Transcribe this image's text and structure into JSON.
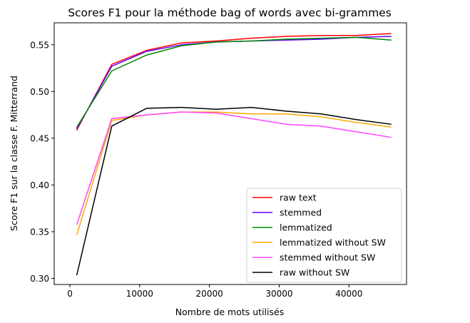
{
  "chart_data": {
    "type": "line",
    "title": "Scores F1 pour la méthode bag of words avec bi-grammes",
    "xlabel": "Nombre de mots utilisés",
    "ylabel": "Score F1 sur la classe F. Mitterrand",
    "xlim": [
      -2250,
      48250
    ],
    "ylim": [
      0.2935,
      0.5735
    ],
    "xticks": [
      0,
      10000,
      20000,
      30000,
      40000
    ],
    "xtick_labels": [
      "0",
      "10000",
      "20000",
      "30000",
      "40000"
    ],
    "yticks": [
      0.3,
      0.35,
      0.4,
      0.45,
      0.5,
      0.55
    ],
    "ytick_labels": [
      "0.30",
      "0.35",
      "0.40",
      "0.45",
      "0.50",
      "0.55"
    ],
    "grid": false,
    "legend_position": "lower-right",
    "x": [
      1000,
      6000,
      11000,
      16000,
      21000,
      26000,
      31000,
      36000,
      41000,
      46000
    ],
    "series": [
      {
        "name": "raw text",
        "color": "#ff0000",
        "values": [
          0.459,
          0.529,
          0.544,
          0.552,
          0.554,
          0.557,
          0.559,
          0.56,
          0.56,
          0.562
        ]
      },
      {
        "name": "stemmed",
        "color": "#6600ff",
        "values": [
          0.46,
          0.527,
          0.543,
          0.55,
          0.553,
          0.554,
          0.555,
          0.556,
          0.558,
          0.559
        ]
      },
      {
        "name": "lemmatized",
        "color": "#008800",
        "values": [
          0.462,
          0.522,
          0.539,
          0.549,
          0.553,
          0.554,
          0.556,
          0.557,
          0.558,
          0.555
        ]
      },
      {
        "name": "lemmatized without SW",
        "color": "#ffaa00",
        "values": [
          0.347,
          0.469,
          0.475,
          0.478,
          0.478,
          0.476,
          0.476,
          0.473,
          0.467,
          0.462
        ]
      },
      {
        "name": "stemmed without SW",
        "color": "#ff44ff",
        "values": [
          0.358,
          0.471,
          0.475,
          0.478,
          0.477,
          0.471,
          0.465,
          0.463,
          0.457,
          0.451
        ]
      },
      {
        "name": "raw without SW",
        "color": "#000000",
        "values": [
          0.304,
          0.463,
          0.482,
          0.483,
          0.481,
          0.483,
          0.479,
          0.476,
          0.47,
          0.465
        ]
      }
    ]
  }
}
